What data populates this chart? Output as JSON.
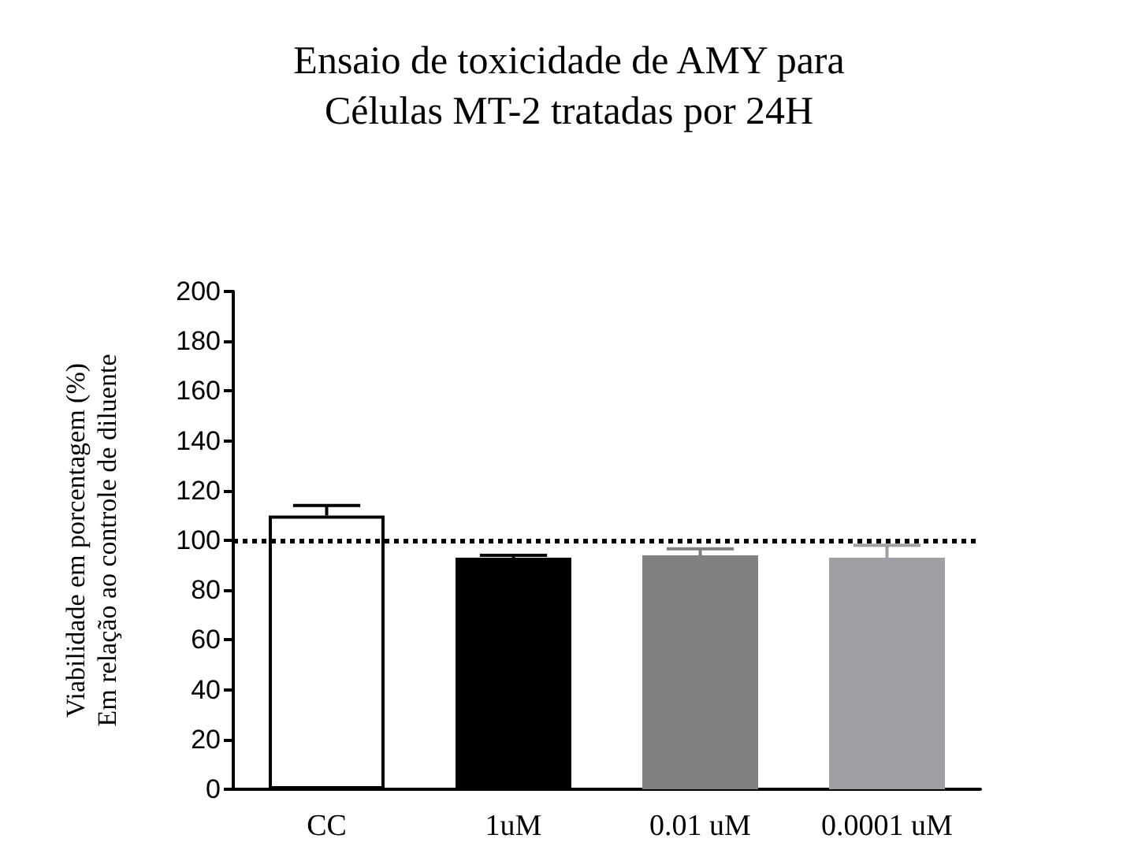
{
  "chart_data": {
    "type": "bar",
    "title": "Ensaio de toxicidade de AMY para\nCélulas MT-2 tratadas por 24H",
    "ylabel": "Viabilidade em porcentagem (%)\nEm relação ao controle de diluente",
    "categories": [
      "CC",
      "1uM",
      "0.01 uM",
      "0.0001 uM"
    ],
    "values": [
      110,
      93,
      94,
      93
    ],
    "errors": [
      [
        110,
        114
      ],
      [
        93,
        94
      ],
      [
        94,
        96.6
      ],
      [
        93,
        98
      ]
    ],
    "colors": [
      "#ffffff",
      "#000000",
      "#808080",
      "#a0a0a4"
    ],
    "ylim": [
      0,
      200
    ],
    "yticks": [
      0,
      20,
      40,
      60,
      80,
      100,
      120,
      140,
      160,
      180,
      200
    ],
    "grid": false,
    "ref_lines": [
      {
        "axis": "y",
        "value": 100,
        "label": null,
        "color": "#000000",
        "line_style": "dotted"
      }
    ]
  }
}
